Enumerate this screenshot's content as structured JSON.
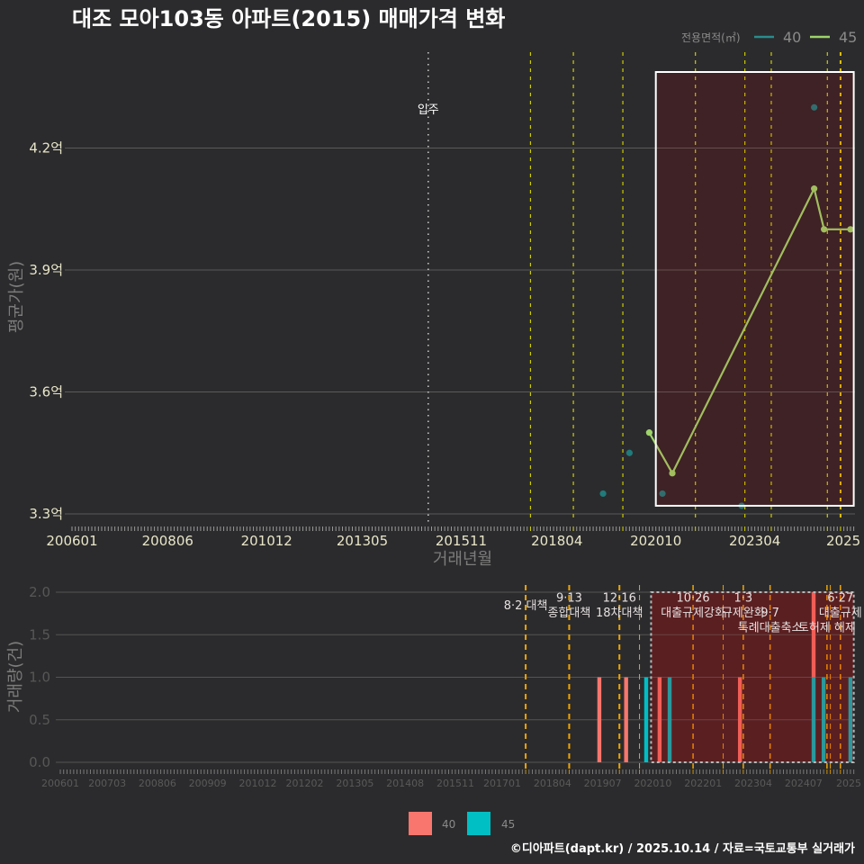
{
  "title": "대조 모아103동 아파트(2015) 매매가격 변화",
  "footer": "©디아파트(dapt.kr) / 2025.10.14 / 자료=국토교통부 실거래가",
  "colors": {
    "background": "#2b2b2d",
    "grid": "#5a5a5a",
    "grid_bottom": "#545454",
    "event_line_top": "#cccc00",
    "event_line_top_strong": "#e0c000",
    "event_line_bottom": "#f0a500",
    "highlight_underlay_top": "#2e262a",
    "highlight_overlay_top": "rgba(210,0,0,0.10)",
    "highlight_underlay_bottom": "#3c272a",
    "highlight_overlay_bottom": "rgba(210,0,0,0.20)"
  },
  "legend_top": {
    "title": "전용면적(㎡)",
    "items": [
      {
        "label": "40",
        "color": "#2a8c8c"
      },
      {
        "label": "45",
        "color": "#9ed46a"
      }
    ]
  },
  "legend_bottom": {
    "items": [
      {
        "label": "40",
        "color": "#f8766d"
      },
      {
        "label": "45",
        "color": "#00bfc4"
      }
    ]
  },
  "chart_data": [
    {
      "type": "line",
      "title": "대조 모아103동 아파트(2015) 매매가격 변화",
      "xlabel": "거래년월",
      "ylabel": "평균가(원)",
      "ylim": [
        3.27,
        4.4
      ],
      "grid": true,
      "legend_position": "top-right",
      "yticks": [
        {
          "value": 4.2,
          "label": "4.2억"
        },
        {
          "value": 3.9,
          "label": "3.9억"
        },
        {
          "value": 3.6,
          "label": "3.6억"
        },
        {
          "value": 3.3,
          "label": "3.3억"
        }
      ],
      "xticks": [
        {
          "month": "200601",
          "label": "200601"
        },
        {
          "month": "200806",
          "label": "200806"
        },
        {
          "month": "201012",
          "label": "201012"
        },
        {
          "month": "201305",
          "label": "201305"
        },
        {
          "month": "201511",
          "label": "201511"
        },
        {
          "month": "201804",
          "label": "201804"
        },
        {
          "month": "202010",
          "label": "202010"
        },
        {
          "month": "202304",
          "label": "202304"
        },
        {
          "month": "202510",
          "label": "2025",
          "clipped": true
        }
      ],
      "x_range": [
        "200601",
        "202510"
      ],
      "series": [
        {
          "name": "40",
          "unit": "억",
          "color": "#1f8a8a",
          "connect": false,
          "points": [
            {
              "x": "201906",
              "y": 3.35
            },
            {
              "x": "202002",
              "y": 3.45
            },
            {
              "x": "202012",
              "y": 3.35
            },
            {
              "x": "202212",
              "y": 3.32
            },
            {
              "x": "202410",
              "y": 4.3
            }
          ]
        },
        {
          "name": "45",
          "unit": "억",
          "color": "#9ed46a",
          "connect": true,
          "points": [
            {
              "x": "202008",
              "y": 3.5
            },
            {
              "x": "202103",
              "y": 3.4
            },
            {
              "x": "202410",
              "y": 4.1
            },
            {
              "x": "202501",
              "y": 4.0
            },
            {
              "x": "202509",
              "y": 4.0
            }
          ]
        }
      ],
      "annotations": [
        {
          "month": "201501",
          "label": "입주",
          "style": "dotted",
          "label_value": 4.3
        }
      ],
      "event_lines": [
        "201708",
        "201809",
        "201912",
        "202110",
        "202301",
        "202309",
        "202502",
        "202506"
      ],
      "strong_event_lines": [
        "202506"
      ],
      "highlight": {
        "from": "202010",
        "to": "202510",
        "y_range": [
          3.32,
          4.387
        ]
      }
    },
    {
      "type": "bar",
      "stacked": true,
      "xlabel": "",
      "ylabel": "거래량(건)",
      "ylim": [
        0,
        2.0
      ],
      "grid": true,
      "legend_position": "bottom",
      "yticks": [
        {
          "value": 2.0,
          "label": "2.0"
        },
        {
          "value": 1.5,
          "label": "1.5"
        },
        {
          "value": 1.0,
          "label": "1.0"
        },
        {
          "value": 0.5,
          "label": "0.5"
        },
        {
          "value": 0.0,
          "label": "0.0"
        }
      ],
      "xticks": [
        {
          "month": "200601",
          "label": "200601"
        },
        {
          "month": "200703",
          "label": "200703"
        },
        {
          "month": "200806",
          "label": "200806"
        },
        {
          "month": "200909",
          "label": "200909"
        },
        {
          "month": "201012",
          "label": "201012"
        },
        {
          "month": "201202",
          "label": "201202"
        },
        {
          "month": "201305",
          "label": "201305"
        },
        {
          "month": "201408",
          "label": "201408"
        },
        {
          "month": "201511",
          "label": "201511"
        },
        {
          "month": "201701",
          "label": "201701"
        },
        {
          "month": "201804",
          "label": "201804"
        },
        {
          "month": "201907",
          "label": "201907"
        },
        {
          "month": "202010",
          "label": "202010"
        },
        {
          "month": "202201",
          "label": "202201"
        },
        {
          "month": "202304",
          "label": "202304"
        },
        {
          "month": "202407",
          "label": "202407"
        },
        {
          "month": "202510",
          "label": "2025",
          "clipped": true
        }
      ],
      "x_range": [
        "200601",
        "202510"
      ],
      "series": [
        {
          "name": "40",
          "color": "#f8766d",
          "values": [
            {
              "x": "201906",
              "y": 1
            },
            {
              "x": "202002",
              "y": 1
            },
            {
              "x": "202012",
              "y": 1
            },
            {
              "x": "202212",
              "y": 1
            },
            {
              "x": "202410",
              "y": 1
            }
          ]
        },
        {
          "name": "45",
          "color": "#00bfc4",
          "values": [
            {
              "x": "202008",
              "y": 1
            },
            {
              "x": "202103",
              "y": 1
            },
            {
              "x": "202410",
              "y": 1
            },
            {
              "x": "202501",
              "y": 1
            },
            {
              "x": "202509",
              "y": 1
            }
          ]
        }
      ],
      "events": [
        {
          "month": "201708",
          "weight": 2,
          "labels": [
            {
              "text": "8·2 대책",
              "row": 1.5
            }
          ]
        },
        {
          "month": "201809",
          "weight": 2,
          "labels": [
            {
              "text": "9·13",
              "row": 1
            },
            {
              "text": "종합대책",
              "row": 2
            }
          ]
        },
        {
          "month": "201912",
          "weight": 2,
          "labels": [
            {
              "text": "12·16",
              "row": 1
            },
            {
              "text": "18차대책",
              "row": 2
            }
          ]
        },
        {
          "month": "202006",
          "weight": 1,
          "labels": []
        },
        {
          "month": "202110",
          "weight": 1.5,
          "labels": [
            {
              "text": "10·26",
              "row": 1
            },
            {
              "text": "대출규제강화",
              "row": 2
            }
          ]
        },
        {
          "month": "202207",
          "weight": 1,
          "labels": []
        },
        {
          "month": "202301",
          "weight": 1.5,
          "labels": [
            {
              "text": "1·3",
              "row": 1
            },
            {
              "text": "규제완화",
              "row": 2
            }
          ]
        },
        {
          "month": "202309",
          "weight": 1.5,
          "labels": [
            {
              "text": "9·7",
              "row": 2
            },
            {
              "text": "특례대출축소",
              "row": 3
            }
          ]
        },
        {
          "month": "202502",
          "weight": 1.5,
          "labels": [
            {
              "text": "토허제 해제",
              "row": 3
            }
          ]
        },
        {
          "month": "202503",
          "weight": 1,
          "labels": []
        },
        {
          "month": "202506",
          "weight": 1.5,
          "labels": [
            {
              "text": "6·27",
              "row": 1
            },
            {
              "text": "대출규제",
              "row": 2
            }
          ]
        }
      ],
      "highlight": {
        "from": "202010",
        "to": "202510",
        "y_range": [
          0,
          2.0
        ]
      }
    }
  ]
}
